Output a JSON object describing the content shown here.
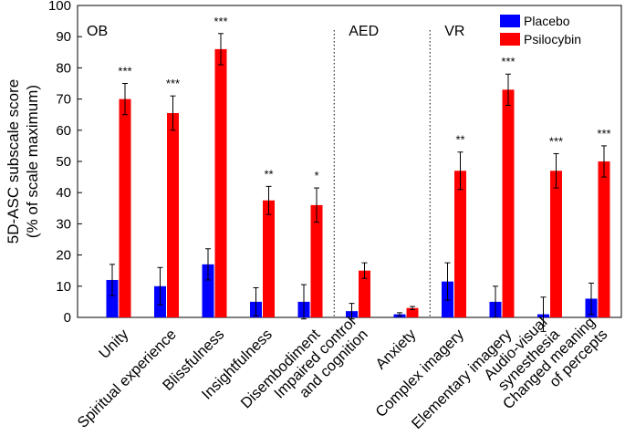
{
  "chart_data": {
    "type": "bar",
    "ylabel_lines": [
      "5D-ASC subscale score",
      "(% of scale maximum)"
    ],
    "ylim": [
      0,
      100
    ],
    "yticks": [
      0,
      10,
      20,
      30,
      40,
      50,
      60,
      70,
      80,
      90,
      100
    ],
    "categories": [
      {
        "lines": [
          "Unity"
        ]
      },
      {
        "lines": [
          "Spiritual experience"
        ]
      },
      {
        "lines": [
          "Blissfulness"
        ]
      },
      {
        "lines": [
          "Insightfulness"
        ]
      },
      {
        "lines": [
          "Disembodiment"
        ]
      },
      {
        "lines": [
          "Impaired control",
          "and cognition"
        ]
      },
      {
        "lines": [
          "Anxiety"
        ]
      },
      {
        "lines": [
          "Complex imagery"
        ]
      },
      {
        "lines": [
          "Elementary imagery"
        ]
      },
      {
        "lines": [
          "Audio-visual",
          "synesthesia"
        ]
      },
      {
        "lines": [
          "Changed meaning",
          "of percepts"
        ]
      }
    ],
    "series": [
      {
        "name": "Placebo",
        "color": "#0000ff",
        "values": [
          12,
          10,
          17,
          5,
          5,
          2,
          1,
          11.5,
          5,
          1,
          6
        ],
        "errors": [
          5,
          6,
          5,
          4.5,
          5.5,
          2.5,
          0.5,
          6,
          5,
          5.5,
          5
        ]
      },
      {
        "name": "Psilocybin",
        "color": "#ff0000",
        "values": [
          70,
          65.5,
          86,
          37.5,
          36,
          15,
          3,
          47,
          73,
          47,
          50
        ],
        "errors": [
          5,
          5.5,
          5,
          4.5,
          5.5,
          2.5,
          0.5,
          6,
          5,
          5.5,
          5
        ]
      }
    ],
    "significance": [
      "***",
      "***",
      "***",
      "**",
      "*",
      "",
      "",
      "**",
      "***",
      "***",
      "***"
    ],
    "groups": [
      {
        "label": "OB",
        "start": 0
      },
      {
        "label": "AED",
        "start": 5
      },
      {
        "label": "VR",
        "start": 7
      }
    ],
    "legend": "top-right",
    "grid": false
  }
}
